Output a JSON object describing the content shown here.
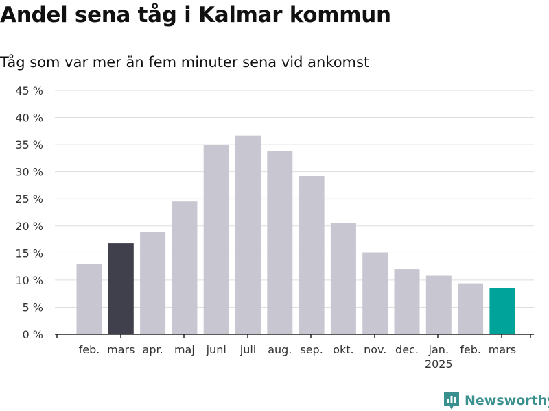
{
  "title": "Andel sena tåg i Kalmar kommun",
  "subtitle": "Tåg som var mer än fem minuter sena vid ankomst",
  "brand": "Newsworthy",
  "colors": {
    "bar_default": "#c8c6d1",
    "bar_dark": "#403f4c",
    "bar_highlight": "#00a39a",
    "grid": "#dddddd",
    "text": "#333333",
    "brand": "#3a8f8f"
  },
  "chart_data": {
    "type": "bar",
    "categories": [
      "feb.",
      "mars",
      "apr.",
      "maj",
      "juni",
      "juli",
      "aug.",
      "sep.",
      "okt.",
      "nov.",
      "dec.",
      "jan.",
      "feb.",
      "mars"
    ],
    "year_labels": [
      {
        "index": 11,
        "label": "2025"
      }
    ],
    "values": [
      13,
      16.8,
      18.9,
      24.5,
      35,
      36.7,
      33.8,
      29.2,
      20.6,
      15.1,
      12,
      10.8,
      9.4,
      8.5
    ],
    "bar_colors": [
      "default",
      "dark",
      "default",
      "default",
      "default",
      "default",
      "default",
      "default",
      "default",
      "default",
      "default",
      "default",
      "default",
      "highlight"
    ],
    "yticks": [
      0,
      5,
      10,
      15,
      20,
      25,
      30,
      35,
      40,
      45
    ],
    "ytick_labels": [
      "0 %",
      "5 %",
      "10 %",
      "15 %",
      "20 %",
      "25 %",
      "30 %",
      "35 %",
      "40 %",
      "45 %"
    ],
    "ylim": [
      0,
      45
    ],
    "grid": true
  }
}
